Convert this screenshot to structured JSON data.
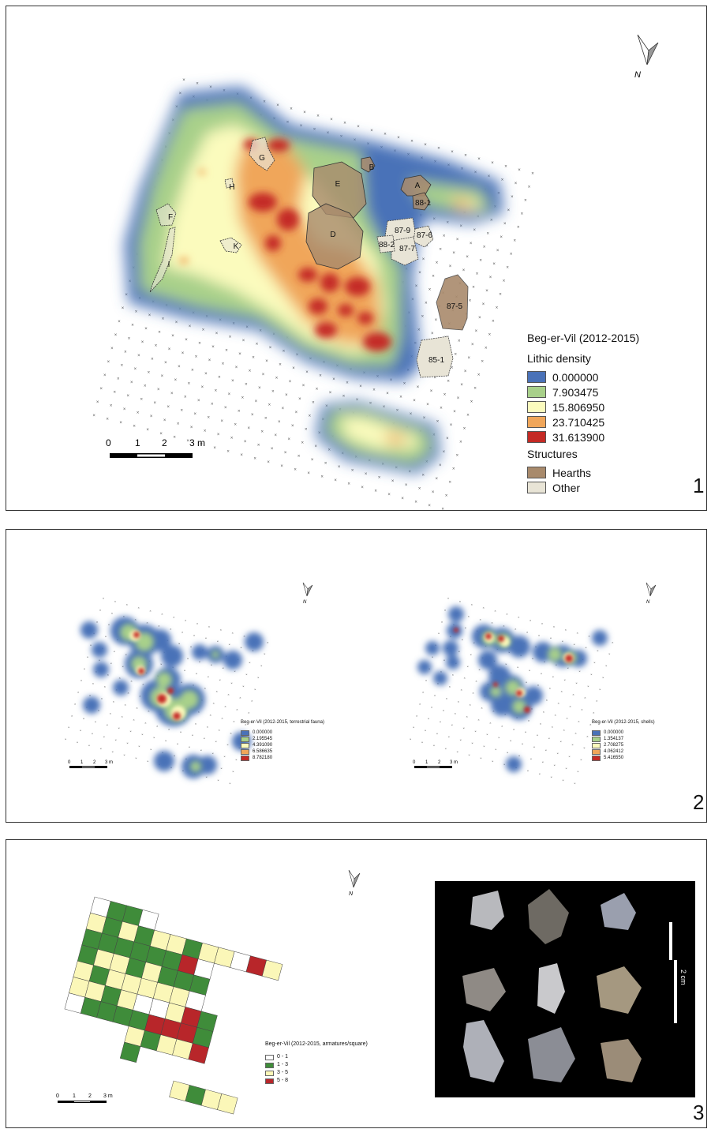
{
  "panel1": {
    "number": "1",
    "legend_title": "Beg-er-Vil (2012-2015)",
    "density_title": "Lithic density",
    "density_classes": [
      {
        "label": "0.000000",
        "color": "#4a72b8"
      },
      {
        "label": "7.903475",
        "color": "#a8d08a"
      },
      {
        "label": "15.806950",
        "color": "#fbfbbd"
      },
      {
        "label": "23.710425",
        "color": "#f0a65a"
      },
      {
        "label": "31.613900",
        "color": "#c42a25"
      }
    ],
    "structures_title": "Structures",
    "structure_classes": [
      {
        "label": "Hearths",
        "color": "#a88a6c"
      },
      {
        "label": "Other",
        "color": "#e8e4d6"
      }
    ],
    "structure_labels": [
      "E",
      "D",
      "B",
      "A",
      "88-1",
      "87-9",
      "87-6",
      "87-7",
      "88-2",
      "87-5",
      "85-1",
      "G",
      "H",
      "F",
      "I",
      "K"
    ],
    "scale": {
      "ticks": [
        "0",
        "1",
        "2",
        "3 m"
      ]
    },
    "north": "N"
  },
  "panel2": {
    "number": "2",
    "left_map": {
      "legend_title": "Beg-er-Vil (2012-2015, terrestrial fauna)",
      "classes": [
        "0.000000",
        "2.195545",
        "4.391090",
        "6.586635",
        "8.782180"
      ]
    },
    "right_map": {
      "legend_title": "Beg-er-Vil (2012-2015, shells)",
      "classes": [
        "0.000000",
        "1.354137",
        "2.708275",
        "4.062412",
        "5.416550"
      ]
    },
    "scale": {
      "ticks": [
        "0",
        "1",
        "2",
        "3 m"
      ]
    },
    "north": "N"
  },
  "panel3": {
    "number": "3",
    "legend_title": "Beg-er-Vil (2012-2015, armatures/square)",
    "classes": [
      {
        "label": "0 - 1",
        "color": "#ffffff"
      },
      {
        "label": "1 - 3",
        "color": "#3f8c3a"
      },
      {
        "label": "3 - 5",
        "color": "#fbf7b8"
      },
      {
        "label": "5 - 8",
        "color": "#b8262a"
      }
    ],
    "photo_scale_label": "2 cm",
    "scale": {
      "ticks": [
        "0",
        "1",
        "2",
        "3 m"
      ]
    },
    "north": "N"
  },
  "colors": {
    "ramp": [
      "#4a72b8",
      "#a8d08a",
      "#fbfbbd",
      "#f0a65a",
      "#c42a25"
    ]
  }
}
